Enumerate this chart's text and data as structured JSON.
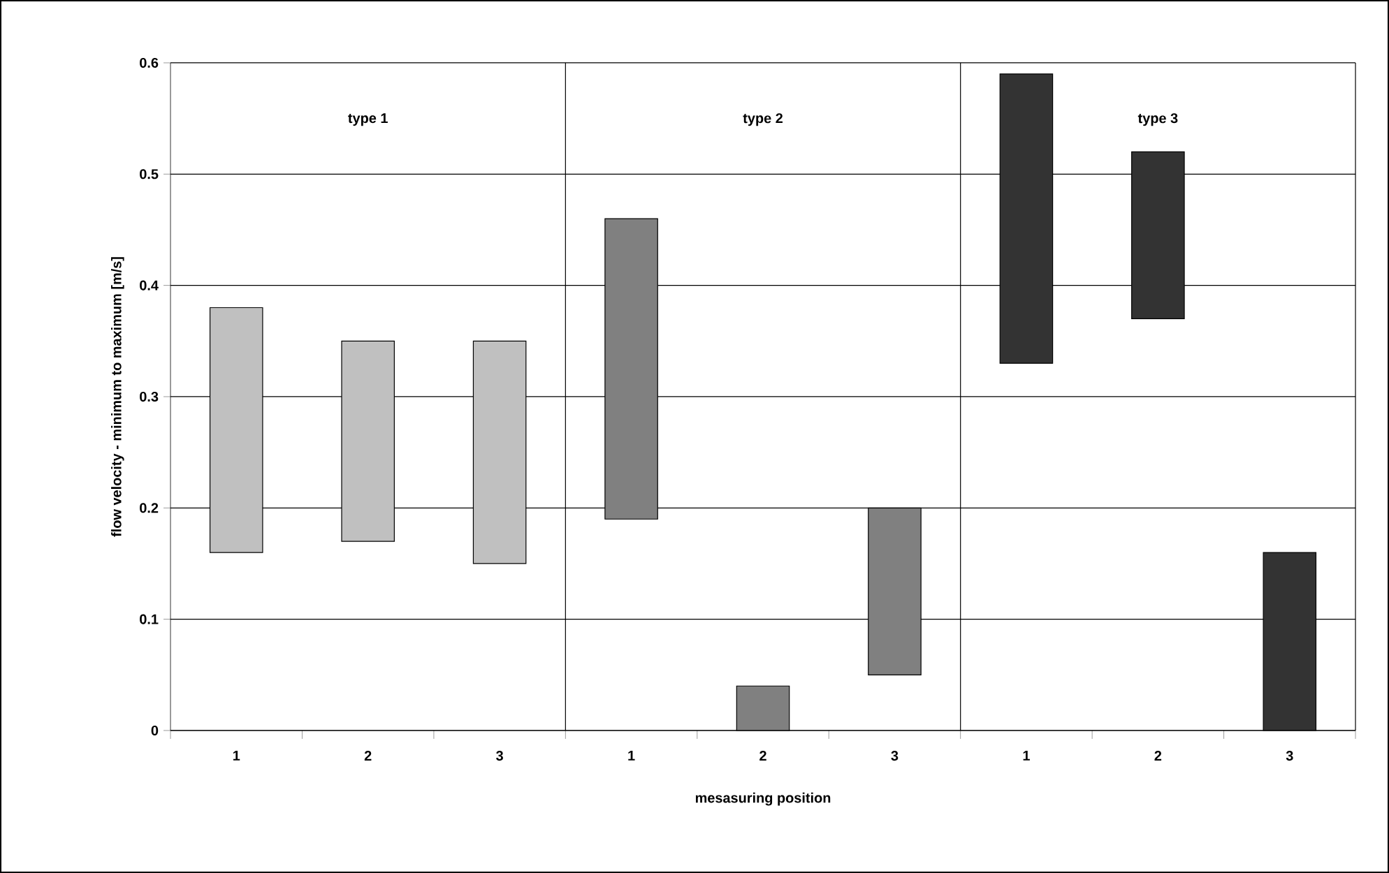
{
  "chart_data": {
    "type": "bar",
    "categories": [
      "1",
      "2",
      "3",
      "1",
      "2",
      "3",
      "1",
      "2",
      "3"
    ],
    "base": [
      0.16,
      0.17,
      0.15,
      0.19,
      0,
      0.05,
      0.33,
      0.37,
      0
    ],
    "values": [
      0.22,
      0.18,
      0.2,
      0.27,
      0.04,
      0.15,
      0.26,
      0.15,
      0.16
    ],
    "colors": [
      "#c0c0c0",
      "#c0c0c0",
      "#c0c0c0",
      "#808080",
      "#808080",
      "#808080",
      "#333333",
      "#333333",
      "#333333"
    ],
    "annotations": [
      "type 1",
      "type 2",
      "type 3"
    ],
    "xlabel": "mesasuring position",
    "ylabel": "flow velocity - minimum to maximum [m/s]",
    "ylim": [
      0,
      0.6
    ],
    "yticks": [
      0,
      0.1,
      0.2,
      0.3,
      0.4,
      0.5,
      0.6
    ],
    "grid": "y"
  }
}
